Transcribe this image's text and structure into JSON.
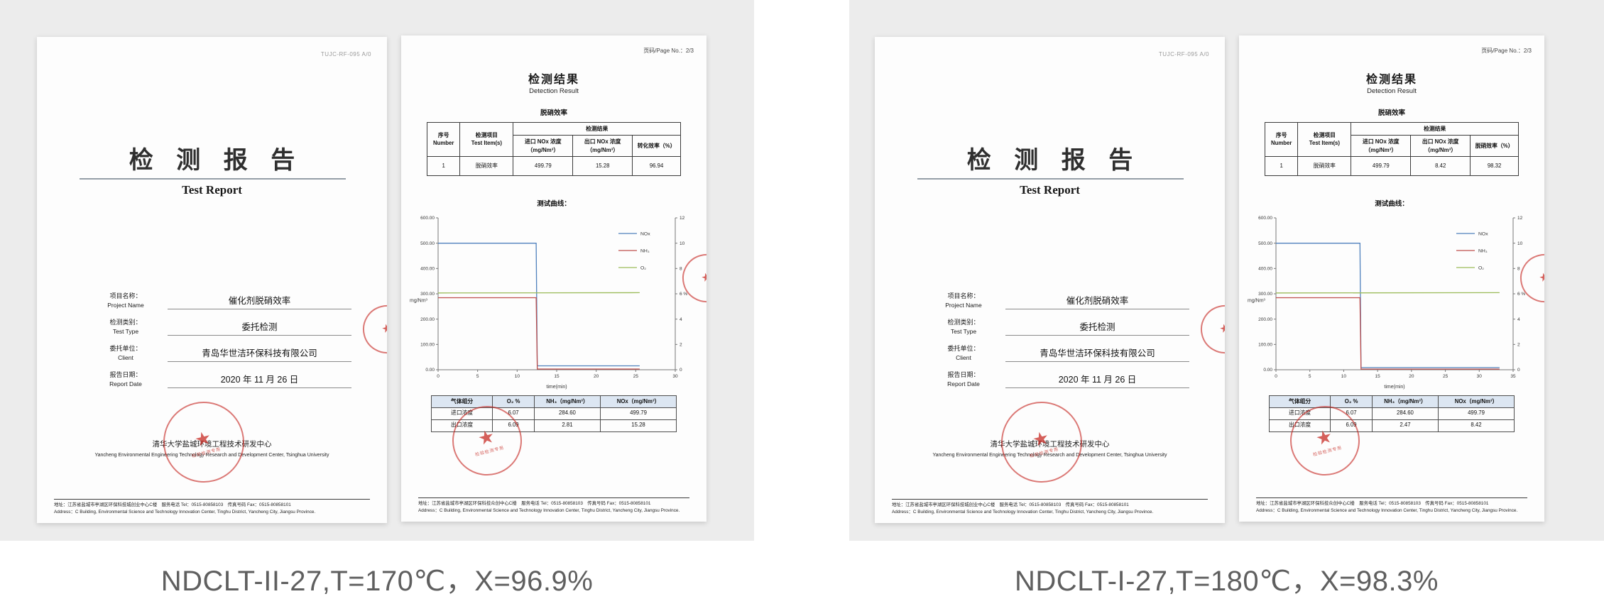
{
  "colors": {
    "panel_bg": "#ececec",
    "stamp_red": "#c5221c",
    "table_header_bg": "#dce6f2",
    "caption_text": "#5f5f5f",
    "series_nox": "#4f81bd",
    "series_nh3": "#c0504d",
    "series_o2": "#9bbb59"
  },
  "captions": {
    "left": "NDCLT-II-27,T=170℃，X=96.9%",
    "right": "NDCLT-I-27,T=180℃，X=98.3%"
  },
  "stamp": {
    "star": "★",
    "label": "检验检测专用"
  },
  "reports": [
    {
      "cover": {
        "doc_code": "TUJC-RF-095 A/0",
        "title_cn": "检 测 报 告",
        "title_en": "Test Report",
        "fields": [
          {
            "cn": "项目名称：",
            "en": "Project Name",
            "value": "催化剂脱硝效率"
          },
          {
            "cn": "检测类别：",
            "en": "Test Type",
            "value": "委托检测"
          },
          {
            "cn": "委托单位：",
            "en": "Client",
            "value": "青岛华世洁环保科技有限公司"
          },
          {
            "cn": "报告日期：",
            "en": "Report Date",
            "value": "2020 年 11 月 26 日"
          }
        ],
        "org_cn": "清华大学盐城环境工程技术研发中心",
        "org_en": "Yancheng Environmental Engineering Technology Research and Development Center, Tsinghua University",
        "addr_cn": "地址：江苏省盐城市亭湖区环保科技城创业中心C楼　服务电话 Tel：0515-80858103　传真号码 Fax：0515-80858101",
        "addr_en": "Address：C Building, Environmental Science and Technology Innovation Center, Tinghu District, Yancheng City, Jiangsu Province."
      },
      "result": {
        "page_no": "页码/Page No.：2/3",
        "title_cn": "检测结果",
        "title_en": "Detection Result",
        "section": "脱硝效率",
        "table": {
          "h_number": "序号\nNumber",
          "h_item": "检测项目\nTest Item(s)",
          "h_result": "检测结果",
          "h_inlet": "进口 NOx 浓度\n（mg/Nm³）",
          "h_outlet": "出口 NOx 浓度\n（mg/Nm³）",
          "h_eff": "转化效率（%）",
          "row": {
            "number": "1",
            "item": "脱硝效率",
            "inlet": "499.79",
            "outlet": "15.28",
            "eff": "96.94"
          }
        },
        "curve_title": "测试曲线：",
        "gas_table": {
          "headers": [
            "气体组分",
            "O₂ %",
            "NH₃（mg/Nm³）",
            "NOx（mg/Nm³）"
          ],
          "rows": [
            [
              "进口浓度",
              "6.07",
              "284.60",
              "499.79"
            ],
            [
              "出口浓度",
              "6.09",
              "2.81",
              "15.28"
            ]
          ]
        },
        "addr_cn": "地址：江苏省盐城市亭湖区环保科技众创中心C楼　服务电话 Tel：0515-80858103　传真号码 Fax：0515-80858101",
        "addr_en": "Address：C Building, Environmental Science and Technology Innovation Center, Tinghu District, Yancheng City, Jiangsu Province."
      }
    },
    {
      "cover": {
        "doc_code": "TUJC-RF-095 A/0",
        "title_cn": "检 测 报 告",
        "title_en": "Test Report",
        "fields": [
          {
            "cn": "项目名称：",
            "en": "Project Name",
            "value": "催化剂脱硝效率"
          },
          {
            "cn": "检测类别：",
            "en": "Test Type",
            "value": "委托检测"
          },
          {
            "cn": "委托单位：",
            "en": "Client",
            "value": "青岛华世洁环保科技有限公司"
          },
          {
            "cn": "报告日期：",
            "en": "Report Date",
            "value": "2020 年 11 月 26 日"
          }
        ],
        "org_cn": "清华大学盐城环境工程技术研发中心",
        "org_en": "Yancheng Environmental Engineering Technology Research and Development Center, Tsinghua University",
        "addr_cn": "地址：江苏省盐城市亭湖区环保科技城创业中心C楼　服务电话 Tel：0515-80858103　传真号码 Fax：0515-80858101",
        "addr_en": "Address：C Building, Environmental Science and Technology Innovation Center, Tinghu District, Yancheng City, Jiangsu Province."
      },
      "result": {
        "page_no": "页码/Page No.：2/3",
        "title_cn": "检测结果",
        "title_en": "Detection Result",
        "section": "脱硝效率",
        "table": {
          "h_number": "序号\nNumber",
          "h_item": "检测项目\nTest Item(s)",
          "h_result": "检测结果",
          "h_inlet": "进口 NOx 浓度\n（mg/Nm³）",
          "h_outlet": "出口 NOx 浓度\n（mg/Nm³）",
          "h_eff": "脱硝效率（%）",
          "row": {
            "number": "1",
            "item": "脱硝效率",
            "inlet": "499.79",
            "outlet": "8.42",
            "eff": "98.32"
          }
        },
        "curve_title": "测试曲线：",
        "gas_table": {
          "headers": [
            "气体组分",
            "O₂ %",
            "NH₃（mg/Nm³）",
            "NOx（mg/Nm³）"
          ],
          "rows": [
            [
              "进口浓度",
              "6.07",
              "284.60",
              "499.79"
            ],
            [
              "出口浓度",
              "6.09",
              "2.47",
              "8.42"
            ]
          ]
        },
        "addr_cn": "地址：江苏省盐城市亭湖区环保科技众创中心C楼　服务电话 Tel：0515-80858103　传真号码 Fax：0515-80858101",
        "addr_en": "Address：C Building, Environmental Science and Technology Innovation Center, Tinghu District, Yancheng City, Jiangsu Province."
      }
    }
  ],
  "chart_data": [
    {
      "type": "line",
      "title": "测试曲线：",
      "xlabel": "time(min)",
      "ylabel_left": "mg/Nm³",
      "ylabel_right": "%",
      "xlim": [
        0,
        30
      ],
      "ylim_left": [
        0,
        600
      ],
      "ylim_right": [
        0,
        12
      ],
      "xticks": [
        0,
        5,
        10,
        15,
        20,
        25,
        30
      ],
      "yticks_left": [
        "0.00",
        "100.00",
        "200.00",
        "300.00",
        "400.00",
        "500.00",
        "600.00"
      ],
      "yticks_right": [
        0,
        2,
        4,
        6,
        8,
        10,
        12
      ],
      "legend_position": "top-right",
      "grid": false,
      "series": [
        {
          "name": "NOx",
          "color": "#4f81bd",
          "axis": "left",
          "points": [
            [
              0,
              500
            ],
            [
              12.4,
              500
            ],
            [
              12.55,
              15.3
            ],
            [
              25.5,
              15.3
            ]
          ]
        },
        {
          "name": "NH₃",
          "color": "#c0504d",
          "axis": "left",
          "points": [
            [
              0,
              284.6
            ],
            [
              12.4,
              284.6
            ],
            [
              12.55,
              2.8
            ],
            [
              25.5,
              2.8
            ]
          ]
        },
        {
          "name": "O₂",
          "color": "#9bbb59",
          "axis": "right",
          "points": [
            [
              0,
              6.07
            ],
            [
              25.5,
              6.09
            ]
          ]
        }
      ]
    },
    {
      "type": "line",
      "title": "测试曲线：",
      "xlabel": "time(min)",
      "ylabel_left": "mg/Nm³",
      "ylabel_right": "%",
      "xlim": [
        0,
        35
      ],
      "ylim_left": [
        0,
        600
      ],
      "ylim_right": [
        0,
        12
      ],
      "xticks": [
        0,
        5,
        10,
        15,
        20,
        25,
        30,
        35
      ],
      "yticks_left": [
        "0.00",
        "100.00",
        "200.00",
        "300.00",
        "400.00",
        "500.00",
        "600.00"
      ],
      "yticks_right": [
        0,
        2,
        4,
        6,
        8,
        10,
        12
      ],
      "legend_position": "top-right",
      "grid": false,
      "series": [
        {
          "name": "NOx",
          "color": "#4f81bd",
          "axis": "left",
          "points": [
            [
              0,
              500
            ],
            [
              12.4,
              500
            ],
            [
              12.55,
              8.4
            ],
            [
              33,
              8.4
            ]
          ]
        },
        {
          "name": "NH₃",
          "color": "#c0504d",
          "axis": "left",
          "points": [
            [
              0,
              284.6
            ],
            [
              12.4,
              284.6
            ],
            [
              12.55,
              2.5
            ],
            [
              33,
              2.5
            ]
          ]
        },
        {
          "name": "O₂",
          "color": "#9bbb59",
          "axis": "right",
          "points": [
            [
              0,
              6.07
            ],
            [
              33,
              6.09
            ]
          ]
        }
      ]
    }
  ]
}
